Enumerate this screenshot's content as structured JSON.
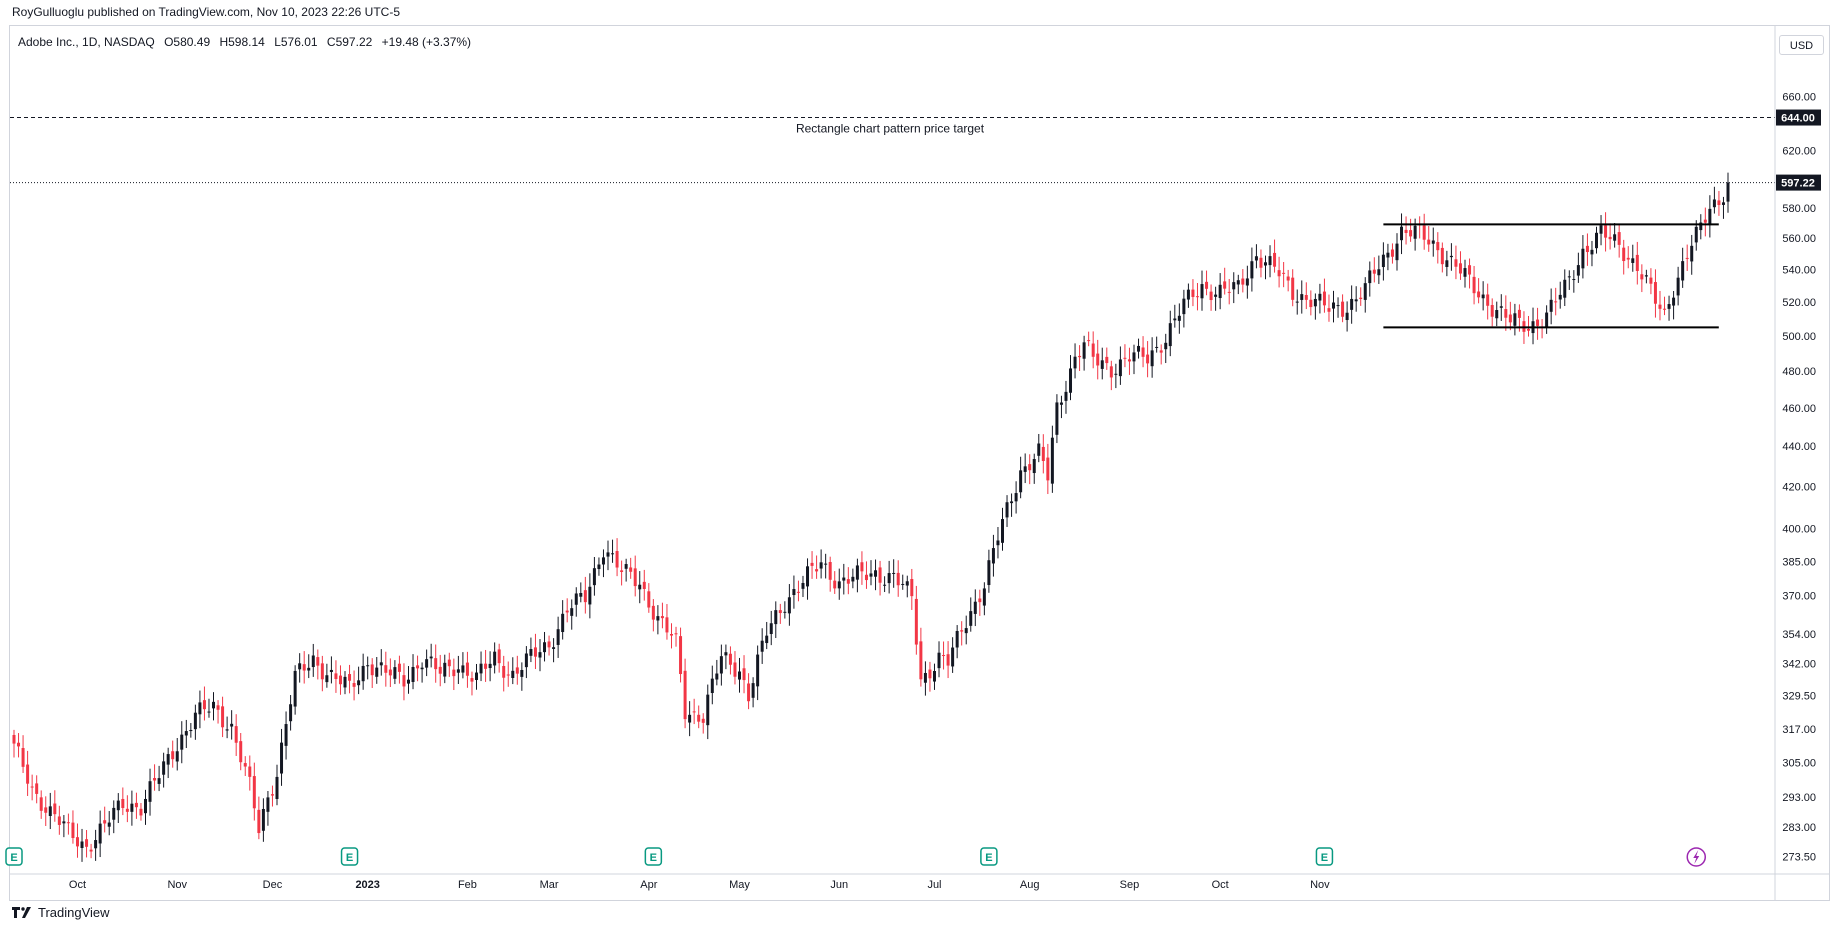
{
  "header": {
    "published_line": "RoyGulluoglu published on TradingView.com, Nov 10, 2023 22:26 UTC-5"
  },
  "legend": {
    "symbol": "Adobe Inc., 1D, NASDAQ",
    "open": "O580.49",
    "high": "H598.14",
    "low": "L576.01",
    "close": "C597.22",
    "change": "+19.48 (+3.37%)"
  },
  "price_scale": {
    "currency": "USD"
  },
  "footer": {
    "brand": "TradingView"
  },
  "colors": {
    "up": "#131722",
    "down": "#f23645",
    "grid": "#d1d4dc",
    "accent_event": "#089981",
    "dividend": "#9c27b0"
  },
  "chart_data": {
    "type": "candlestick",
    "scale": "log",
    "ylim": [
      268,
      690
    ],
    "y_ticks": [
      273.5,
      283.0,
      293.0,
      305.0,
      317.0,
      329.5,
      342.0,
      354.0,
      370.0,
      385.0,
      400.0,
      420.0,
      440.0,
      460.0,
      480.0,
      500.0,
      520.0,
      540.0,
      560.0,
      580.0,
      620.0,
      660.0
    ],
    "y_tick_labels": [
      "273.50",
      "283.00",
      "293.00",
      "305.00",
      "317.00",
      "329.50",
      "342.00",
      "354.00",
      "370.00",
      "385.00",
      "400.00",
      "420.00",
      "440.00",
      "460.00",
      "480.00",
      "500.00",
      "520.00",
      "540.00",
      "560.00",
      "580.00",
      "620.00",
      "660.00"
    ],
    "x_tick_labels": [
      "Oct",
      "Nov",
      "Dec",
      "2023",
      "Feb",
      "Mar",
      "Apr",
      "May",
      "Jun",
      "Jul",
      "Aug",
      "Sep",
      "Oct",
      "Nov"
    ],
    "last_price": 597.22,
    "last_price_label": "597.22",
    "target_price": 644.0,
    "target_price_label": "644.00",
    "target_annotation": "Rectangle chart pattern price target",
    "rectangle_pattern": {
      "upper": 569,
      "lower": 505
    },
    "earnings_marker_label": "E",
    "waypoints": [
      [
        0,
        310
      ],
      [
        4,
        296
      ],
      [
        8,
        288
      ],
      [
        12,
        281
      ],
      [
        16,
        277
      ],
      [
        20,
        283
      ],
      [
        24,
        291
      ],
      [
        28,
        290
      ],
      [
        32,
        300
      ],
      [
        36,
        312
      ],
      [
        40,
        322
      ],
      [
        44,
        325
      ],
      [
        48,
        318
      ],
      [
        52,
        296
      ],
      [
        54,
        282
      ],
      [
        56,
        293
      ],
      [
        58,
        302
      ],
      [
        62,
        336
      ],
      [
        66,
        344
      ],
      [
        70,
        337
      ],
      [
        74,
        332
      ],
      [
        78,
        343
      ],
      [
        82,
        338
      ],
      [
        86,
        336
      ],
      [
        90,
        344
      ],
      [
        94,
        338
      ],
      [
        98,
        342
      ],
      [
        102,
        336
      ],
      [
        106,
        344
      ],
      [
        110,
        338
      ],
      [
        114,
        344
      ],
      [
        118,
        350
      ],
      [
        122,
        364
      ],
      [
        126,
        369
      ],
      [
        130,
        392
      ],
      [
        134,
        380
      ],
      [
        138,
        376
      ],
      [
        142,
        360
      ],
      [
        146,
        350
      ],
      [
        148,
        324
      ],
      [
        152,
        322
      ],
      [
        156,
        344
      ],
      [
        160,
        340
      ],
      [
        162,
        330
      ],
      [
        166,
        354
      ],
      [
        170,
        368
      ],
      [
        174,
        376
      ],
      [
        178,
        384
      ],
      [
        182,
        376
      ],
      [
        186,
        378
      ],
      [
        190,
        380
      ],
      [
        194,
        378
      ],
      [
        198,
        369
      ],
      [
        200,
        336
      ],
      [
        204,
        344
      ],
      [
        206,
        342
      ],
      [
        210,
        360
      ],
      [
        214,
        375
      ],
      [
        218,
        402
      ],
      [
        222,
        428
      ],
      [
        226,
        436
      ],
      [
        228,
        424
      ],
      [
        230,
        460
      ],
      [
        234,
        488
      ],
      [
        236,
        495
      ],
      [
        238,
        486
      ],
      [
        242,
        482
      ],
      [
        246,
        488
      ],
      [
        250,
        487
      ],
      [
        254,
        500
      ],
      [
        258,
        518
      ],
      [
        262,
        530
      ],
      [
        266,
        526
      ],
      [
        270,
        528
      ],
      [
        274,
        550
      ],
      [
        278,
        540
      ],
      [
        282,
        526
      ],
      [
        286,
        522
      ],
      [
        290,
        515
      ],
      [
        294,
        518
      ],
      [
        298,
        528
      ],
      [
        302,
        546
      ],
      [
        306,
        565
      ],
      [
        310,
        562
      ],
      [
        314,
        554
      ],
      [
        318,
        542
      ],
      [
        322,
        528
      ],
      [
        326,
        518
      ],
      [
        330,
        508
      ],
      [
        334,
        506
      ],
      [
        338,
        512
      ],
      [
        342,
        528
      ],
      [
        346,
        552
      ],
      [
        350,
        562
      ],
      [
        354,
        556
      ],
      [
        358,
        542
      ],
      [
        362,
        520
      ],
      [
        364,
        512
      ],
      [
        366,
        530
      ],
      [
        370,
        556
      ],
      [
        372,
        565
      ],
      [
        374,
        580
      ],
      [
        376,
        586
      ],
      [
        378,
        597.22
      ]
    ],
    "events": {
      "earnings_bar_indices": [
        0,
        74,
        141,
        215,
        289
      ],
      "dividend_bar_index": 371
    }
  }
}
